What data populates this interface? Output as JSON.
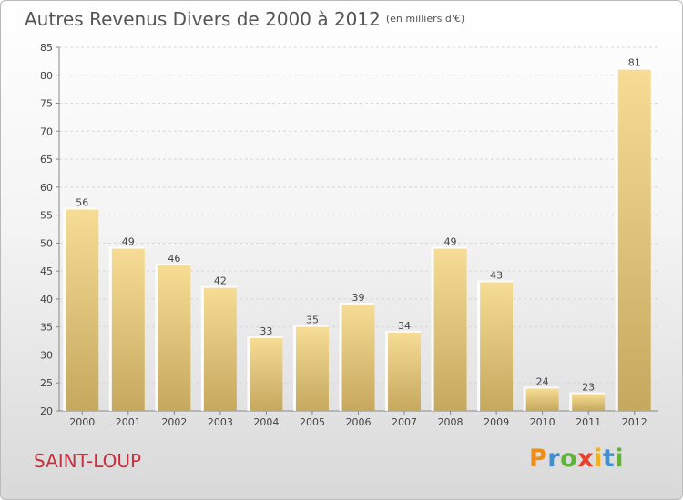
{
  "chart_data": {
    "type": "bar",
    "title": "Autres Revenus Divers de 2000 à 2012",
    "subtitle": "(en milliers d'€)",
    "categories": [
      "2000",
      "2001",
      "2002",
      "2003",
      "2004",
      "2005",
      "2006",
      "2007",
      "2008",
      "2009",
      "2010",
      "2011",
      "2012"
    ],
    "values": [
      56,
      49,
      46,
      42,
      33,
      35,
      39,
      34,
      49,
      43,
      24,
      23,
      81
    ],
    "ylim": [
      20,
      85
    ],
    "yticks": [
      20,
      25,
      30,
      35,
      40,
      45,
      50,
      55,
      60,
      65,
      70,
      75,
      80,
      85
    ],
    "grid": true,
    "bar_color": "#e8c87e"
  },
  "footer": {
    "place": "SAINT-LOUP",
    "logo_letters": [
      {
        "char": "P",
        "color": "#f08c1a"
      },
      {
        "char": "r",
        "color": "#3f8fd2"
      },
      {
        "char": "o",
        "color": "#5fb336"
      },
      {
        "char": "x",
        "color": "#e8412a"
      },
      {
        "char": "i",
        "color": "#f0b21a"
      },
      {
        "char": "t",
        "color": "#3f8fd2"
      },
      {
        "char": "i",
        "color": "#5fb336"
      }
    ]
  }
}
